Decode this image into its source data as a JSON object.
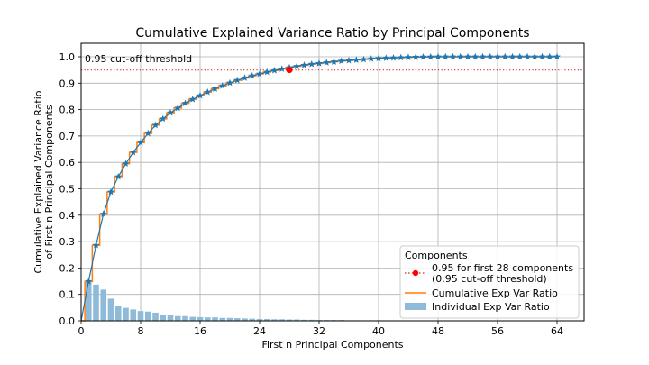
{
  "chart_data": {
    "type": "bar+line",
    "title": "Cumulative Explained Variance Ratio by Principal Components",
    "xlabel": "First n Principal Components",
    "ylabel_line1": "Cumulative Explained Variance Ratio",
    "ylabel_line2": "of First n Principal Components",
    "xlim": [
      0,
      64
    ],
    "ylim": [
      0,
      1.0
    ],
    "xticks": [
      0,
      8,
      16,
      24,
      32,
      40,
      48,
      56,
      64
    ],
    "yticks": [
      0.0,
      0.1,
      0.2,
      0.3,
      0.4,
      0.5,
      0.6,
      0.7,
      0.8,
      0.9,
      1.0
    ],
    "grid": true,
    "threshold": {
      "value": 0.95,
      "label": "0.95 cut-off threshold",
      "color": "#d62728"
    },
    "cutoff_point": {
      "x": 28,
      "y": 0.95,
      "color": "#ff0000"
    },
    "individual_ratios": [
      0.149,
      0.137,
      0.118,
      0.084,
      0.058,
      0.049,
      0.043,
      0.037,
      0.035,
      0.031,
      0.024,
      0.023,
      0.018,
      0.018,
      0.015,
      0.014,
      0.013,
      0.013,
      0.011,
      0.011,
      0.01,
      0.009,
      0.008,
      0.007,
      0.007,
      0.006,
      0.006,
      0.005,
      0.005,
      0.004,
      0.004,
      0.003,
      0.003,
      0.003,
      0.003,
      0.002,
      0.002,
      0.002,
      0.002,
      0.002,
      0.001,
      0.001,
      0.001,
      0.001,
      0.001,
      0.001,
      0.001,
      0.001,
      0.001,
      0.0005,
      0.0005,
      0.0004,
      0.0004,
      0.0003,
      0.0003,
      0.0002,
      0.0002,
      0.0001,
      0.0001,
      0.0001,
      0.0001,
      0,
      0,
      0
    ],
    "cumulative": [
      0.149,
      0.286,
      0.404,
      0.488,
      0.546,
      0.595,
      0.638,
      0.675,
      0.71,
      0.741,
      0.765,
      0.788,
      0.806,
      0.824,
      0.839,
      0.853,
      0.866,
      0.879,
      0.89,
      0.901,
      0.911,
      0.92,
      0.928,
      0.935,
      0.942,
      0.948,
      0.954,
      0.959,
      0.964,
      0.968,
      0.972,
      0.975,
      0.978,
      0.981,
      0.984,
      0.986,
      0.988,
      0.99,
      0.992,
      0.994,
      0.995,
      0.996,
      0.997,
      0.998,
      0.999,
      0.9993,
      0.9996,
      1.0,
      1.0,
      1.0,
      1.0,
      1.0,
      1.0,
      1.0,
      1.0,
      1.0,
      1.0,
      1.0,
      1.0,
      1.0,
      1.0,
      1.0,
      1.0,
      1.0
    ],
    "colors": {
      "bars": "#8fbbd9",
      "step_line": "#ff7f0e",
      "marker_line": "#1f77b4",
      "grid": "#b0b0b0"
    },
    "legend": {
      "title": "Components",
      "placement": "lower-right",
      "entries": [
        {
          "label_line1": "0.95 for first 28 components",
          "label_line2": "(0.95 cut-off threshold)"
        },
        {
          "label_line1": "Cumulative Exp Var Ratio"
        },
        {
          "label_line1": "Individual Exp Var Ratio"
        }
      ]
    }
  }
}
